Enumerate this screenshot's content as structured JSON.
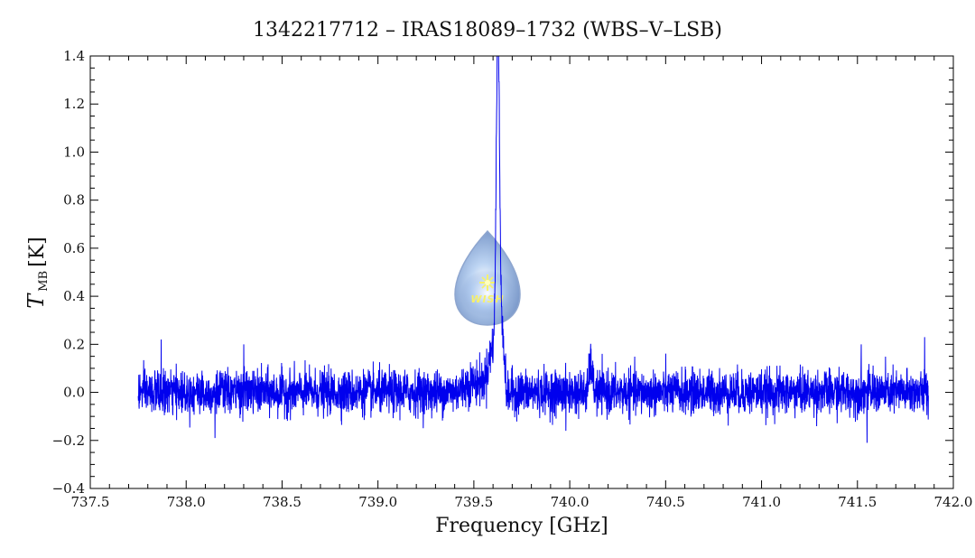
{
  "chart_data": {
    "type": "line",
    "title": "1342217712 – IRAS18089–1732 (WBS–V–LSB)",
    "xlabel": "Frequency [GHz]",
    "ylabel": {
      "symbol": "T",
      "subscript": "MB",
      "unit": "[K]"
    },
    "xlim": [
      737.5,
      742.0
    ],
    "ylim": [
      -0.4,
      1.4
    ],
    "x_ticks": [
      "737.5",
      "738.0",
      "738.5",
      "739.0",
      "739.5",
      "740.0",
      "740.5",
      "741.0",
      "741.5",
      "742.0"
    ],
    "y_ticks": [
      "−0.4",
      "−0.2",
      "0.0",
      "0.2",
      "0.4",
      "0.6",
      "0.8",
      "1.0",
      "1.2",
      "1.4"
    ],
    "grid": false,
    "line_color": "#0000ee",
    "series": [
      {
        "x_range": [
          737.75,
          741.87
        ],
        "baseline": 0.0,
        "noise_rms": 0.045,
        "features": [
          {
            "center": 739.625,
            "peak": 1.33,
            "width": 0.008
          },
          {
            "center": 739.61,
            "peak": 0.2,
            "width": 0.03
          },
          {
            "center": 739.645,
            "peak": 0.22,
            "width": 0.012
          },
          {
            "center": 740.11,
            "peak": 0.12,
            "width": 0.008
          },
          {
            "center": 739.5,
            "peak": 0.04,
            "width": 0.05
          },
          {
            "center": 739.67,
            "peak": -0.05,
            "width": 0.01
          }
        ],
        "spikes": [
          {
            "x": 737.87,
            "y": 0.22
          },
          {
            "x": 738.3,
            "y": 0.2
          },
          {
            "x": 738.15,
            "y": -0.19
          },
          {
            "x": 741.55,
            "y": -0.21
          },
          {
            "x": 741.52,
            "y": 0.2
          },
          {
            "x": 741.85,
            "y": 0.23
          },
          {
            "x": 739.98,
            "y": -0.16
          }
        ]
      }
    ]
  },
  "logo": {
    "name": "WISH"
  }
}
